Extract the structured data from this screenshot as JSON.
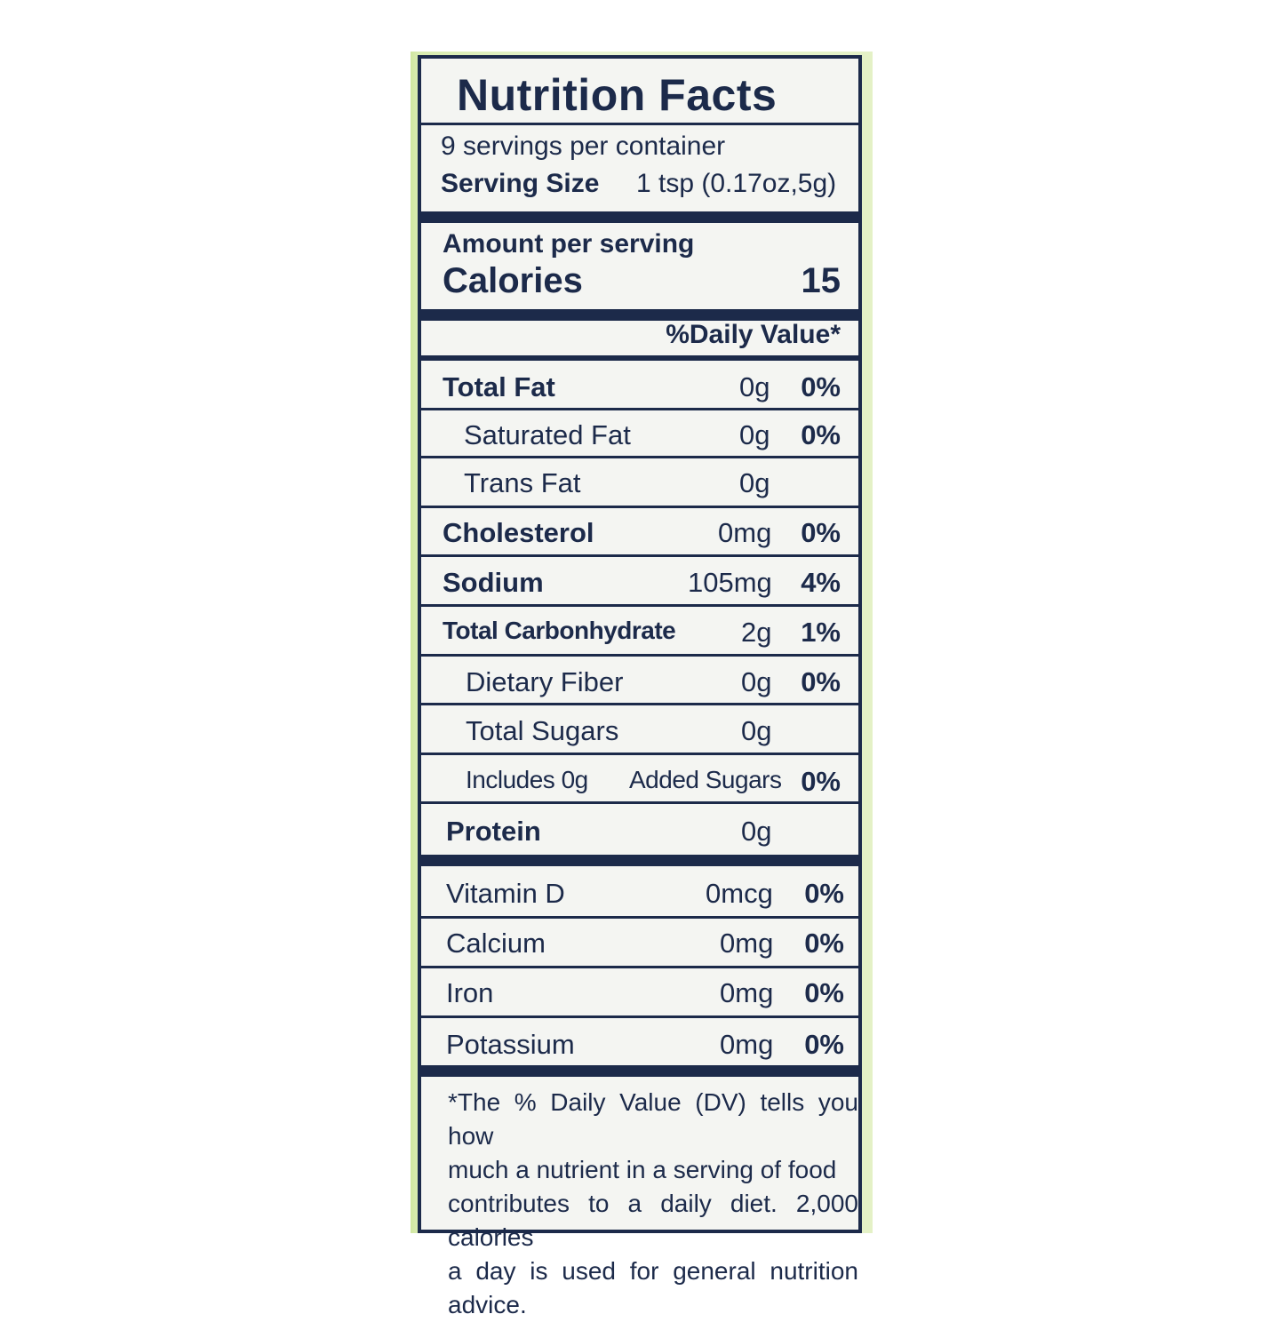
{
  "title": "Nutrition Facts",
  "servings": "9 servings per container",
  "serving_size_label": "Serving Size",
  "serving_size_value": "1 tsp (0.17oz,5g)",
  "amount_per_serving": "Amount per serving",
  "calories_label": "Calories",
  "calories_value": "15",
  "daily_value_header": "%Daily Value*",
  "nutrients": [
    {
      "name": "Total Fat",
      "amount": "0g",
      "dv": "0%"
    },
    {
      "name": "Saturated Fat",
      "amount": "0g",
      "dv": "0%"
    },
    {
      "name": "Trans Fat",
      "amount": "0g",
      "dv": ""
    },
    {
      "name": "Cholesterol",
      "amount": "0mg",
      "dv": "0%"
    },
    {
      "name": "Sodium",
      "amount": "105mg",
      "dv": "4%"
    },
    {
      "name": "Total Carbonhydrate",
      "amount": "2g",
      "dv": "1%"
    },
    {
      "name": "Dietary Fiber",
      "amount": "0g",
      "dv": "0%"
    },
    {
      "name": "Total Sugars",
      "amount": "0g",
      "dv": ""
    },
    {
      "name": "Includes 0g",
      "amount": "Added Sugars",
      "dv": "0%"
    },
    {
      "name": "Protein",
      "amount": "0g",
      "dv": ""
    }
  ],
  "vitamins": [
    {
      "name": "Vitamin D",
      "amount": "0mcg",
      "dv": "0%"
    },
    {
      "name": "Calcium",
      "amount": "0mg",
      "dv": "0%"
    },
    {
      "name": "Iron",
      "amount": "0mg",
      "dv": "0%"
    },
    {
      "name": "Potassium",
      "amount": "0mg",
      "dv": "0%"
    }
  ],
  "footnote_lines": [
    "*The % Daily Value (DV) tells you how",
    "much a nutrient in a serving of food",
    "contributes to a daily diet. 2,000 calories",
    "a day is used for general nutrition advice."
  ],
  "colors": {
    "ink": "#1c2a4a",
    "panel": "#f4f5f2",
    "package": "#d9ecb0"
  }
}
